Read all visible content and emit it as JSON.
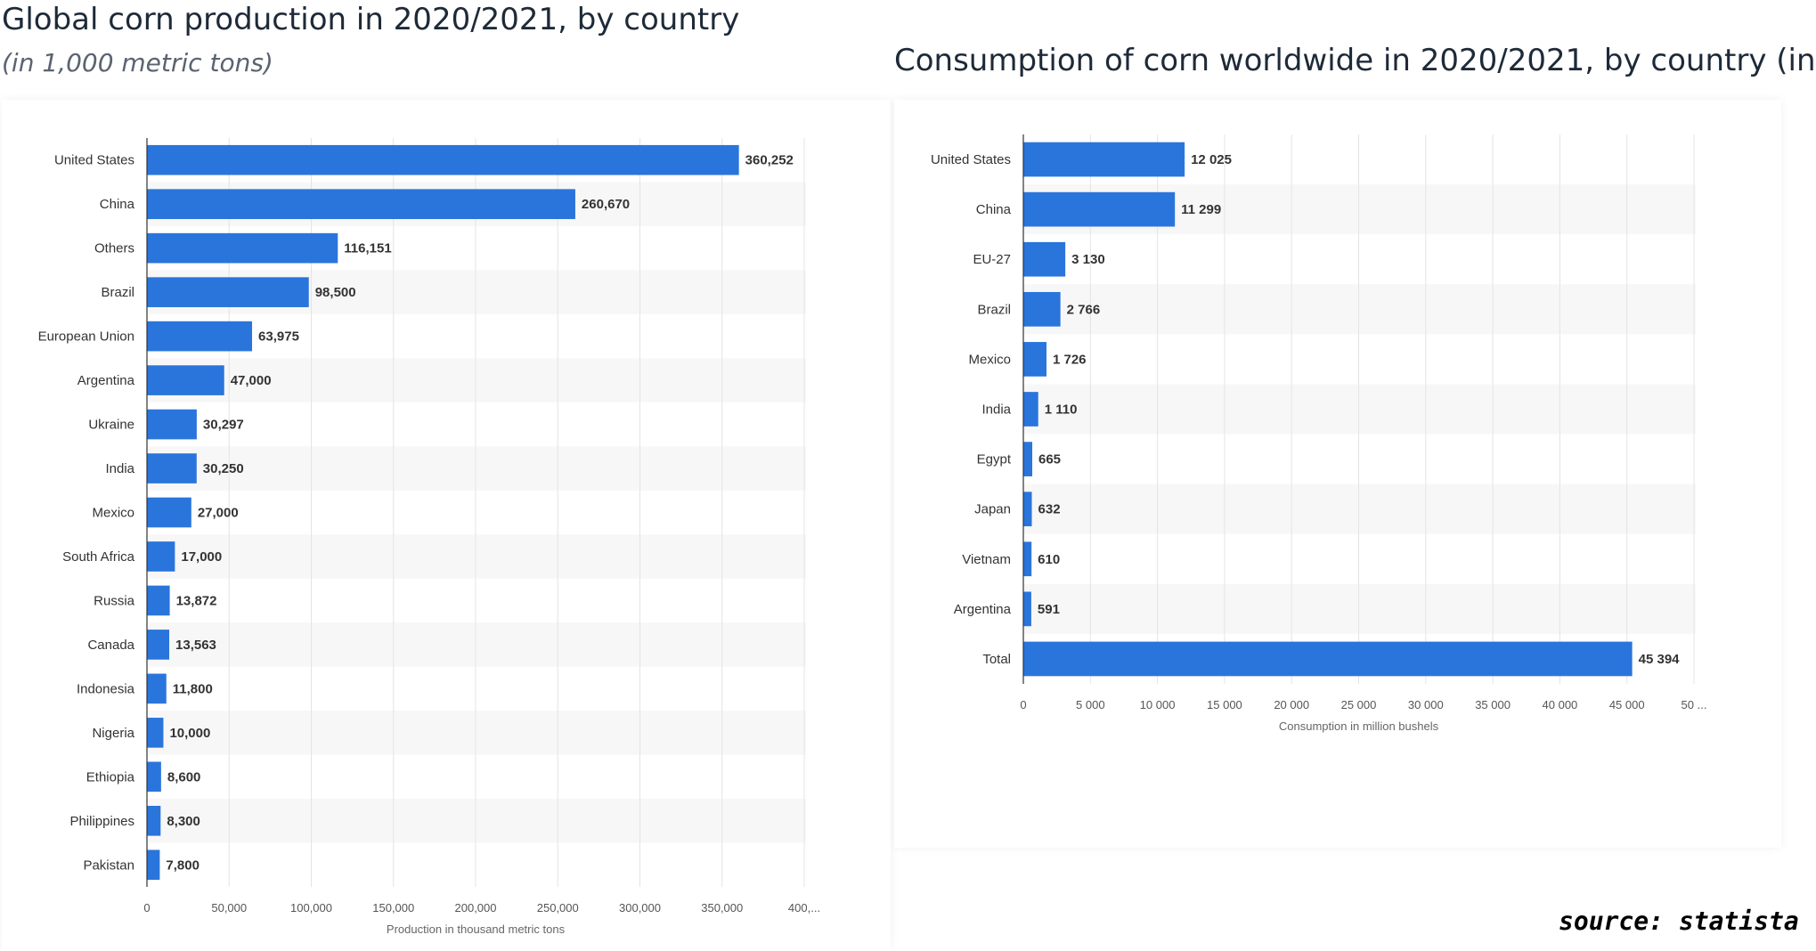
{
  "colors": {
    "bar": "#2a75dc",
    "band": "#f7f7f7",
    "grid": "#e4e4e4",
    "axis": "#333333"
  },
  "source": "source: statista",
  "chart_data": [
    {
      "type": "bar",
      "orientation": "horizontal",
      "title": "Global corn production in 2020/2021, by country",
      "subtitle": "(in 1,000 metric tons)",
      "xlabel": "Production in thousand metric tons",
      "xlim": [
        0,
        400000
      ],
      "xticks": [
        "0",
        "50,000",
        "100,000",
        "150,000",
        "200,000",
        "250,000",
        "300,000",
        "350,000",
        "400,..."
      ],
      "grid": true,
      "categories": [
        "United States",
        "China",
        "Others",
        "Brazil",
        "European Union",
        "Argentina",
        "Ukraine",
        "India",
        "Mexico",
        "South Africa",
        "Russia",
        "Canada",
        "Indonesia",
        "Nigeria",
        "Ethiopia",
        "Philippines",
        "Pakistan"
      ],
      "values": [
        360252,
        260670,
        116151,
        98500,
        63975,
        47000,
        30297,
        30250,
        27000,
        17000,
        13872,
        13563,
        11800,
        10000,
        8600,
        8300,
        7800
      ],
      "value_labels": [
        "360,252",
        "260,670",
        "116,151",
        "98,500",
        "63,975",
        "47,000",
        "30,297",
        "30,250",
        "27,000",
        "17,000",
        "13,872",
        "13,563",
        "11,800",
        "10,000",
        "8,600",
        "8,300",
        "7,800"
      ]
    },
    {
      "type": "bar",
      "orientation": "horizontal",
      "title": "Consumption of corn worldwide in 2020/2021, by country (in",
      "xlabel": "Consumption in million bushels",
      "xlim": [
        0,
        50000
      ],
      "xticks": [
        "0",
        "5 000",
        "10 000",
        "15 000",
        "20 000",
        "25 000",
        "30 000",
        "35 000",
        "40 000",
        "45 000",
        "50 ..."
      ],
      "grid": true,
      "categories": [
        "United States",
        "China",
        "EU-27",
        "Brazil",
        "Mexico",
        "India",
        "Egypt",
        "Japan",
        "Vietnam",
        "Argentina",
        "Total"
      ],
      "values": [
        12025,
        11299,
        3130,
        2766,
        1726,
        1110,
        665,
        632,
        610,
        591,
        45394
      ],
      "value_labels": [
        "12 025",
        "11 299",
        "3 130",
        "2 766",
        "1 726",
        "1 110",
        "665",
        "632",
        "610",
        "591",
        "45 394"
      ]
    }
  ]
}
